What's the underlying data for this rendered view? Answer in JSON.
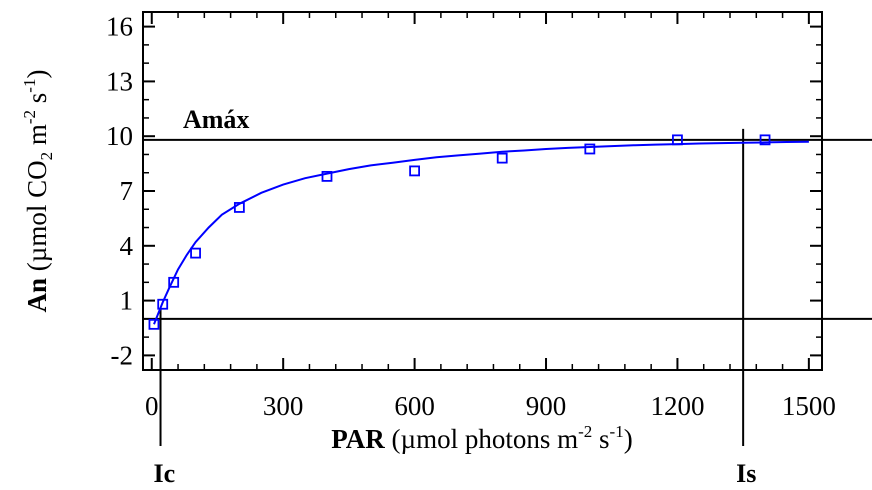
{
  "chart_data": {
    "type": "scatter",
    "xlabel": {
      "bold": "PAR",
      "text": "  (µmol photons m",
      "sup1": "-2",
      "mid": " s",
      "sup2": "-1",
      "end": ")"
    },
    "ylabel": {
      "bold": "An",
      "text": " (µmol CO",
      "sub": "2",
      "mid1": " m",
      "sup1": "-2",
      "mid2": " s",
      "sup2": "-1",
      "end": ")"
    },
    "xlim": [
      -20,
      1530
    ],
    "ylim": [
      -2.8,
      16.8
    ],
    "xticks": [
      0,
      300,
      600,
      900,
      1200,
      1500
    ],
    "yticks": [
      -2,
      1,
      4,
      7,
      10,
      13,
      16
    ],
    "xtick_labels": [
      "0",
      "300",
      "600",
      "900",
      "1200",
      "1500"
    ],
    "ytick_labels": [
      "-2",
      "1",
      "4",
      "7",
      "10",
      "13",
      "16"
    ],
    "series": [
      {
        "kind": "measured",
        "marker": "open-square",
        "color": "#0000ff",
        "x": [
          5,
          25,
          50,
          100,
          200,
          400,
          600,
          800,
          1000,
          1200,
          1400
        ],
        "y": [
          -0.3,
          0.8,
          2.0,
          3.6,
          6.1,
          7.8,
          8.1,
          8.8,
          9.3,
          9.8,
          9.8
        ]
      },
      {
        "kind": "fitted",
        "line": "solid",
        "color": "#0000ff",
        "x": [
          5,
          15,
          25,
          40,
          60,
          80,
          100,
          130,
          160,
          200,
          250,
          300,
          350,
          400,
          450,
          500,
          550,
          600,
          650,
          700,
          750,
          800,
          850,
          900,
          950,
          1000,
          1050,
          1100,
          1150,
          1200,
          1250,
          1300,
          1350,
          1400,
          1450,
          1500
        ],
        "y": [
          -0.3,
          0.3,
          0.9,
          1.7,
          2.7,
          3.5,
          4.2,
          5.0,
          5.7,
          6.3,
          6.9,
          7.35,
          7.7,
          7.95,
          8.2,
          8.4,
          8.55,
          8.7,
          8.85,
          8.95,
          9.05,
          9.15,
          9.22,
          9.3,
          9.36,
          9.41,
          9.46,
          9.5,
          9.54,
          9.57,
          9.6,
          9.62,
          9.64,
          9.66,
          9.68,
          9.7
        ]
      }
    ],
    "reference_lines": [
      {
        "orientation": "horizontal",
        "value": 9.8,
        "label": "Amáx"
      },
      {
        "orientation": "horizontal",
        "value": 0
      },
      {
        "orientation": "vertical",
        "value": 20,
        "label": "Ic"
      },
      {
        "orientation": "vertical",
        "value": 1350,
        "label": "Is"
      }
    ],
    "grid": false
  }
}
